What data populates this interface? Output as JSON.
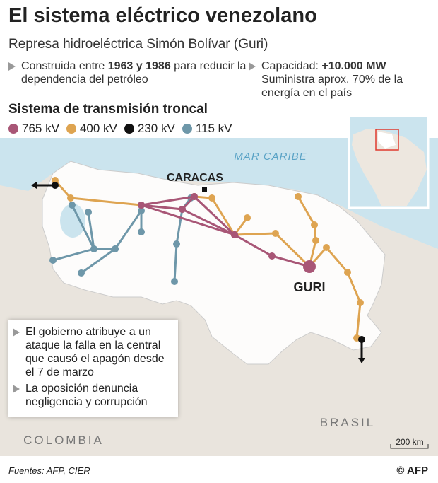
{
  "header": {
    "title": "El sistema eléctrico venezolano",
    "subtitle": "Represa hidroeléctrica Simón Bolívar (Guri)",
    "facts": [
      [
        "Construida entre ",
        "1963 y 1986",
        " para reducir la dependencia del petróleo"
      ],
      [
        "Capacidad: ",
        "+10.000 MW",
        " Suministra aprox. 70% de la energía en el país"
      ]
    ]
  },
  "legend": {
    "title": "Sistema de transmisión troncal",
    "items": [
      {
        "name": "765 kV",
        "color": "#a85676"
      },
      {
        "name": "400 kV",
        "color": "#dea451"
      },
      {
        "name": "230 kV",
        "color": "#111111"
      },
      {
        "name": "115 kV",
        "color": "#6e97a9"
      }
    ]
  },
  "map": {
    "labels": {
      "sea": "MAR CARIBE",
      "capital": "CARACAS",
      "dam": "GURI",
      "west": "COLOMBIA",
      "south": "BRASIL"
    },
    "scale": "200 km"
  },
  "notes": [
    "El gobierno atribuye a un ataque la falla en la central que causó el apagón desde el 7 de marzo",
    "La oposición denuncia negligencia y corrupción"
  ],
  "footer": {
    "sources": "Fuentes: AFP, CIER",
    "credit": "© AFP"
  }
}
